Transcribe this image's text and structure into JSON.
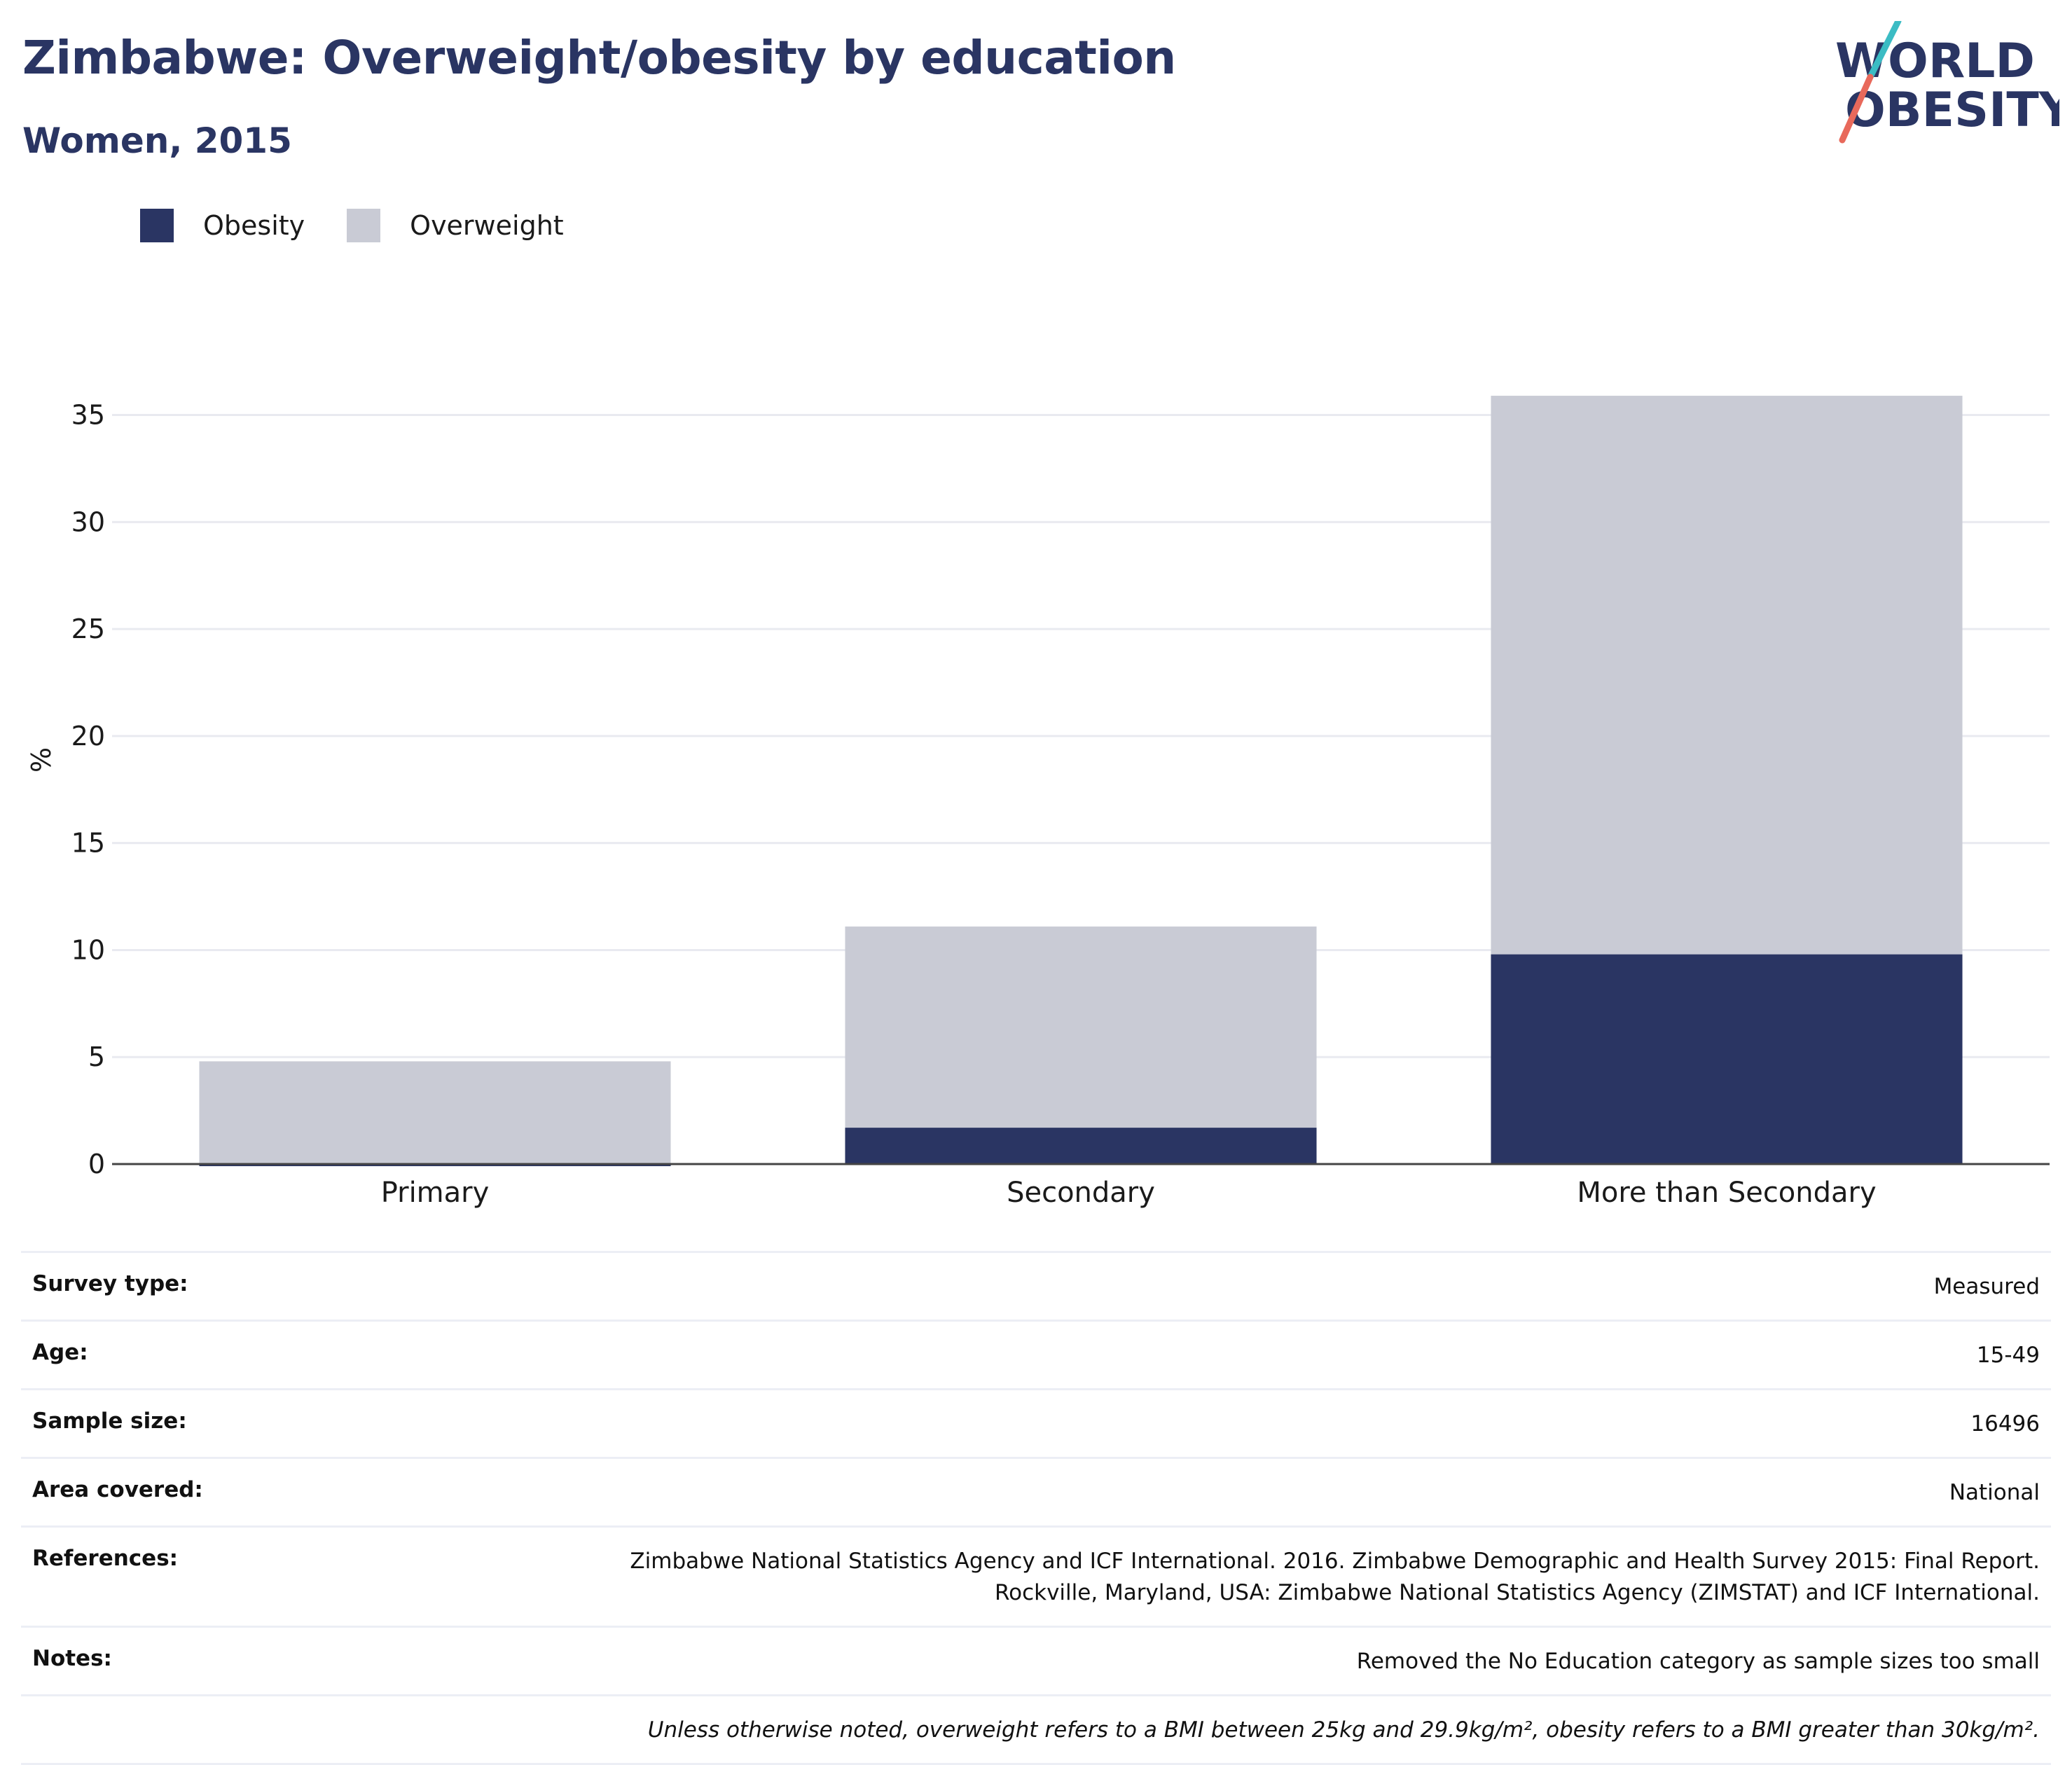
{
  "header": {
    "title": "Zimbabwe: Overweight/obesity by education",
    "subtitle": "Women, 2015"
  },
  "logo": {
    "line1": "WORLD",
    "line2": "OBESITY"
  },
  "legend": [
    {
      "label": "Obesity",
      "color": "#2a3563"
    },
    {
      "label": "Overweight",
      "color": "#c9cbd5"
    }
  ],
  "chart_data": {
    "type": "bar",
    "stacked": true,
    "categories": [
      "Primary",
      "Secondary",
      "More than Secondary"
    ],
    "series": [
      {
        "name": "Obesity",
        "color": "#2a3563",
        "values": [
          0,
          1.7,
          9.8
        ]
      },
      {
        "name": "Overweight",
        "color": "#c9cbd5",
        "values": [
          4.8,
          9.4,
          26.1
        ]
      }
    ],
    "ylabel": "%",
    "xlabel": "",
    "ylim": [
      0,
      36
    ],
    "yticks": [
      0,
      5,
      10,
      15,
      20,
      25,
      30,
      35
    ],
    "grid": true,
    "legend_position": "top-left"
  },
  "meta": {
    "rows": [
      {
        "label": "Survey type:",
        "value": "Measured"
      },
      {
        "label": "Age:",
        "value": "15-49"
      },
      {
        "label": "Sample size:",
        "value": "16496"
      },
      {
        "label": "Area covered:",
        "value": "National"
      }
    ],
    "references": {
      "label": "References:",
      "line1": "Zimbabwe National Statistics Agency and ICF International. 2016. Zimbabwe Demographic and Health Survey 2015: Final Report.",
      "line2": "Rockville, Maryland, USA: Zimbabwe National Statistics Agency (ZIMSTAT) and ICF International."
    },
    "notes": {
      "label": "Notes:",
      "value": "Removed the No Education category as sample sizes too small"
    },
    "footnote": "Unless otherwise noted, overweight refers to a BMI between 25kg and 29.9kg/m², obesity refers to a BMI greater than 30kg/m²."
  }
}
